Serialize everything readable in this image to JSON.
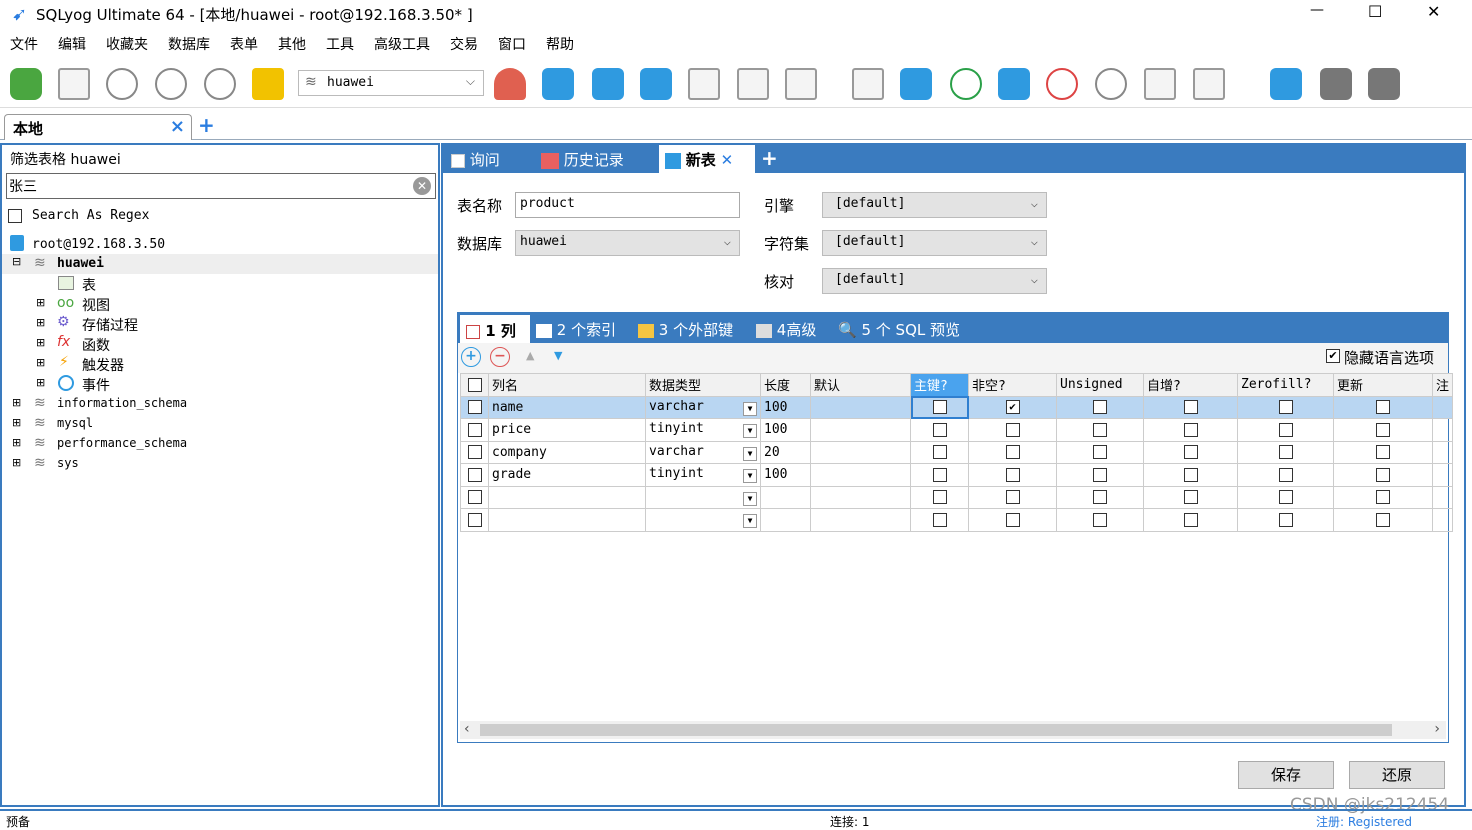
{
  "window": {
    "title": "SQLyog Ultimate 64 - [本地/huawei - root@192.168.3.50* ]",
    "minimize": "—",
    "maximize": "☐",
    "close": "✕"
  },
  "menu": [
    "文件",
    "编辑",
    "收藏夹",
    "数据库",
    "表单",
    "其他",
    "工具",
    "高级工具",
    "交易",
    "窗口",
    "帮助"
  ],
  "toolbar": {
    "db_select": "huawei"
  },
  "conn_tabs": {
    "active": "本地",
    "close": "×",
    "add": "+"
  },
  "left": {
    "filter_label": "筛选表格 huawei",
    "filter_value": "张三",
    "regex_label": "Search As Regex",
    "tree": {
      "server": "root@192.168.3.50",
      "db": "huawei",
      "children": [
        "表",
        "视图",
        "存储过程",
        "函数",
        "触发器",
        "事件"
      ],
      "other_dbs": [
        "information_schema",
        "mysql",
        "performance_schema",
        "sys"
      ]
    }
  },
  "query_tabs": [
    {
      "label": "询问"
    },
    {
      "label": "历史记录"
    },
    {
      "label": "新表",
      "active": true
    }
  ],
  "form": {
    "table_name_label": "表名称",
    "table_name": "product",
    "db_label": "数据库",
    "db": "huawei",
    "engine_label": "引擎",
    "engine": "[default]",
    "charset_label": "字符集",
    "charset": "[default]",
    "collation_label": "核对",
    "collation": "[default]"
  },
  "sub_tabs": [
    "1 列",
    "2 个索引",
    "3 个外部键",
    "4高级",
    "5 个 SQL 预览"
  ],
  "hide_lang_label": "隐藏语言选项",
  "columns_header": [
    "列名",
    "数据类型",
    "长度",
    "默认",
    "主键?",
    "非空?",
    "Unsigned",
    "自增?",
    "Zerofill?",
    "更新",
    "注"
  ],
  "rows": [
    {
      "name": "name",
      "type": "varchar",
      "length": "100",
      "default": "",
      "pk": false,
      "notnull": true
    },
    {
      "name": "price",
      "type": "tinyint",
      "length": "100",
      "default": "",
      "pk": false,
      "notnull": false
    },
    {
      "name": "company",
      "type": "varchar",
      "length": "20",
      "default": "",
      "pk": false,
      "notnull": false
    },
    {
      "name": "grade",
      "type": "tinyint",
      "length": "100",
      "default": "",
      "pk": false,
      "notnull": false
    },
    {
      "name": "",
      "type": "",
      "length": "",
      "default": "",
      "pk": false,
      "notnull": false
    },
    {
      "name": "",
      "type": "",
      "length": "",
      "default": "",
      "pk": false,
      "notnull": false
    }
  ],
  "buttons": {
    "save": "保存",
    "revert": "还原"
  },
  "status": {
    "left": "预备",
    "conn": "连接: 1",
    "reg": "注册: Registered"
  },
  "watermark": "CSDN @jks212454",
  "colors": {
    "accent": "#3a7bbf",
    "selected_row": "#b9d6f2",
    "header_highlight": "#4aa3ee"
  }
}
